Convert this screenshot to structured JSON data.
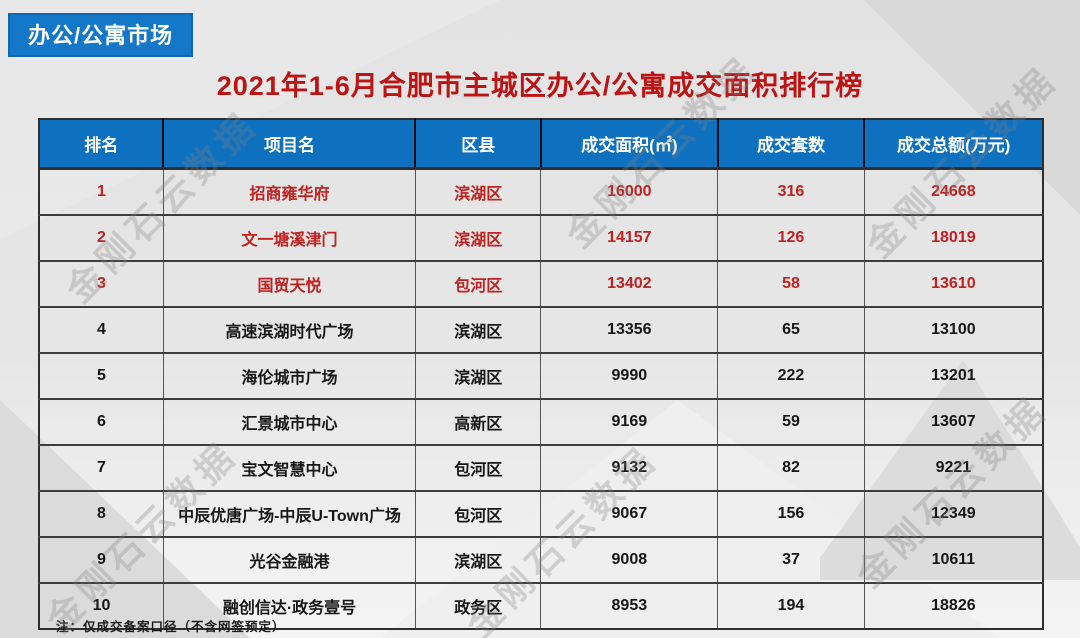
{
  "badge": {
    "label": "办公/公寓市场"
  },
  "title": "2021年1-6月合肥市主城区办公/公寓成交面积排行榜",
  "note": "注：仅成交备案口径（不含网签预定）",
  "watermark": {
    "text": "金刚石云数据"
  },
  "colors": {
    "badge_blue": "#1478c9",
    "header_blue": "#0e71c0",
    "title_red": "#bf1212",
    "highlight_red": "#c32020",
    "background_gray": "#e6e6e6"
  },
  "table": {
    "columns": [
      "排名",
      "项目名",
      "区县",
      "成交面积(㎡)",
      "成交套数",
      "成交总额(万元)"
    ],
    "rows": [
      {
        "rank": "1",
        "project": "招商雍华府",
        "district": "滨湖区",
        "area": "16000",
        "units": "316",
        "total": "24668",
        "highlight": true
      },
      {
        "rank": "2",
        "project": "文一塘溪津门",
        "district": "滨湖区",
        "area": "14157",
        "units": "126",
        "total": "18019",
        "highlight": true
      },
      {
        "rank": "3",
        "project": "国贸天悦",
        "district": "包河区",
        "area": "13402",
        "units": "58",
        "total": "13610",
        "highlight": true
      },
      {
        "rank": "4",
        "project": "高速滨湖时代广场",
        "district": "滨湖区",
        "area": "13356",
        "units": "65",
        "total": "13100",
        "highlight": false
      },
      {
        "rank": "5",
        "project": "海伦城市广场",
        "district": "滨湖区",
        "area": "9990",
        "units": "222",
        "total": "13201",
        "highlight": false
      },
      {
        "rank": "6",
        "project": "汇景城市中心",
        "district": "高新区",
        "area": "9169",
        "units": "59",
        "total": "13607",
        "highlight": false
      },
      {
        "rank": "7",
        "project": "宝文智慧中心",
        "district": "包河区",
        "area": "9132",
        "units": "82",
        "total": "9221",
        "highlight": false
      },
      {
        "rank": "8",
        "project": "中辰优唐广场-中辰U-Town广场",
        "district": "包河区",
        "area": "9067",
        "units": "156",
        "total": "12349",
        "highlight": false
      },
      {
        "rank": "9",
        "project": "光谷金融港",
        "district": "滨湖区",
        "area": "9008",
        "units": "37",
        "total": "10611",
        "highlight": false
      },
      {
        "rank": "10",
        "project": "融创信达·政务壹号",
        "district": "政务区",
        "area": "8953",
        "units": "194",
        "total": "18826",
        "highlight": false
      }
    ]
  },
  "chart_data": {
    "type": "table",
    "title": "2021年1-6月合肥市主城区办公/公寓成交面积排行榜",
    "columns": [
      "排名",
      "项目名",
      "区县",
      "成交面积(㎡)",
      "成交套数",
      "成交总额(万元)"
    ],
    "rows": [
      [
        1,
        "招商雍华府",
        "滨湖区",
        16000,
        316,
        24668
      ],
      [
        2,
        "文一塘溪津门",
        "滨湖区",
        14157,
        126,
        18019
      ],
      [
        3,
        "国贸天悦",
        "包河区",
        13402,
        58,
        13610
      ],
      [
        4,
        "高速滨湖时代广场",
        "滨湖区",
        13356,
        65,
        13100
      ],
      [
        5,
        "海伦城市广场",
        "滨湖区",
        9990,
        222,
        13201
      ],
      [
        6,
        "汇景城市中心",
        "高新区",
        9169,
        59,
        13607
      ],
      [
        7,
        "宝文智慧中心",
        "包河区",
        9132,
        82,
        9221
      ],
      [
        8,
        "中辰优唐广场-中辰U-Town广场",
        "包河区",
        9067,
        156,
        12349
      ],
      [
        9,
        "光谷金融港",
        "滨湖区",
        9008,
        37,
        10611
      ],
      [
        10,
        "融创信达·政务壹号",
        "政务区",
        8953,
        194,
        18826
      ]
    ],
    "highlighted_ranks": [
      1,
      2,
      3
    ],
    "note": "注：仅成交备案口径（不含网签预定）"
  }
}
